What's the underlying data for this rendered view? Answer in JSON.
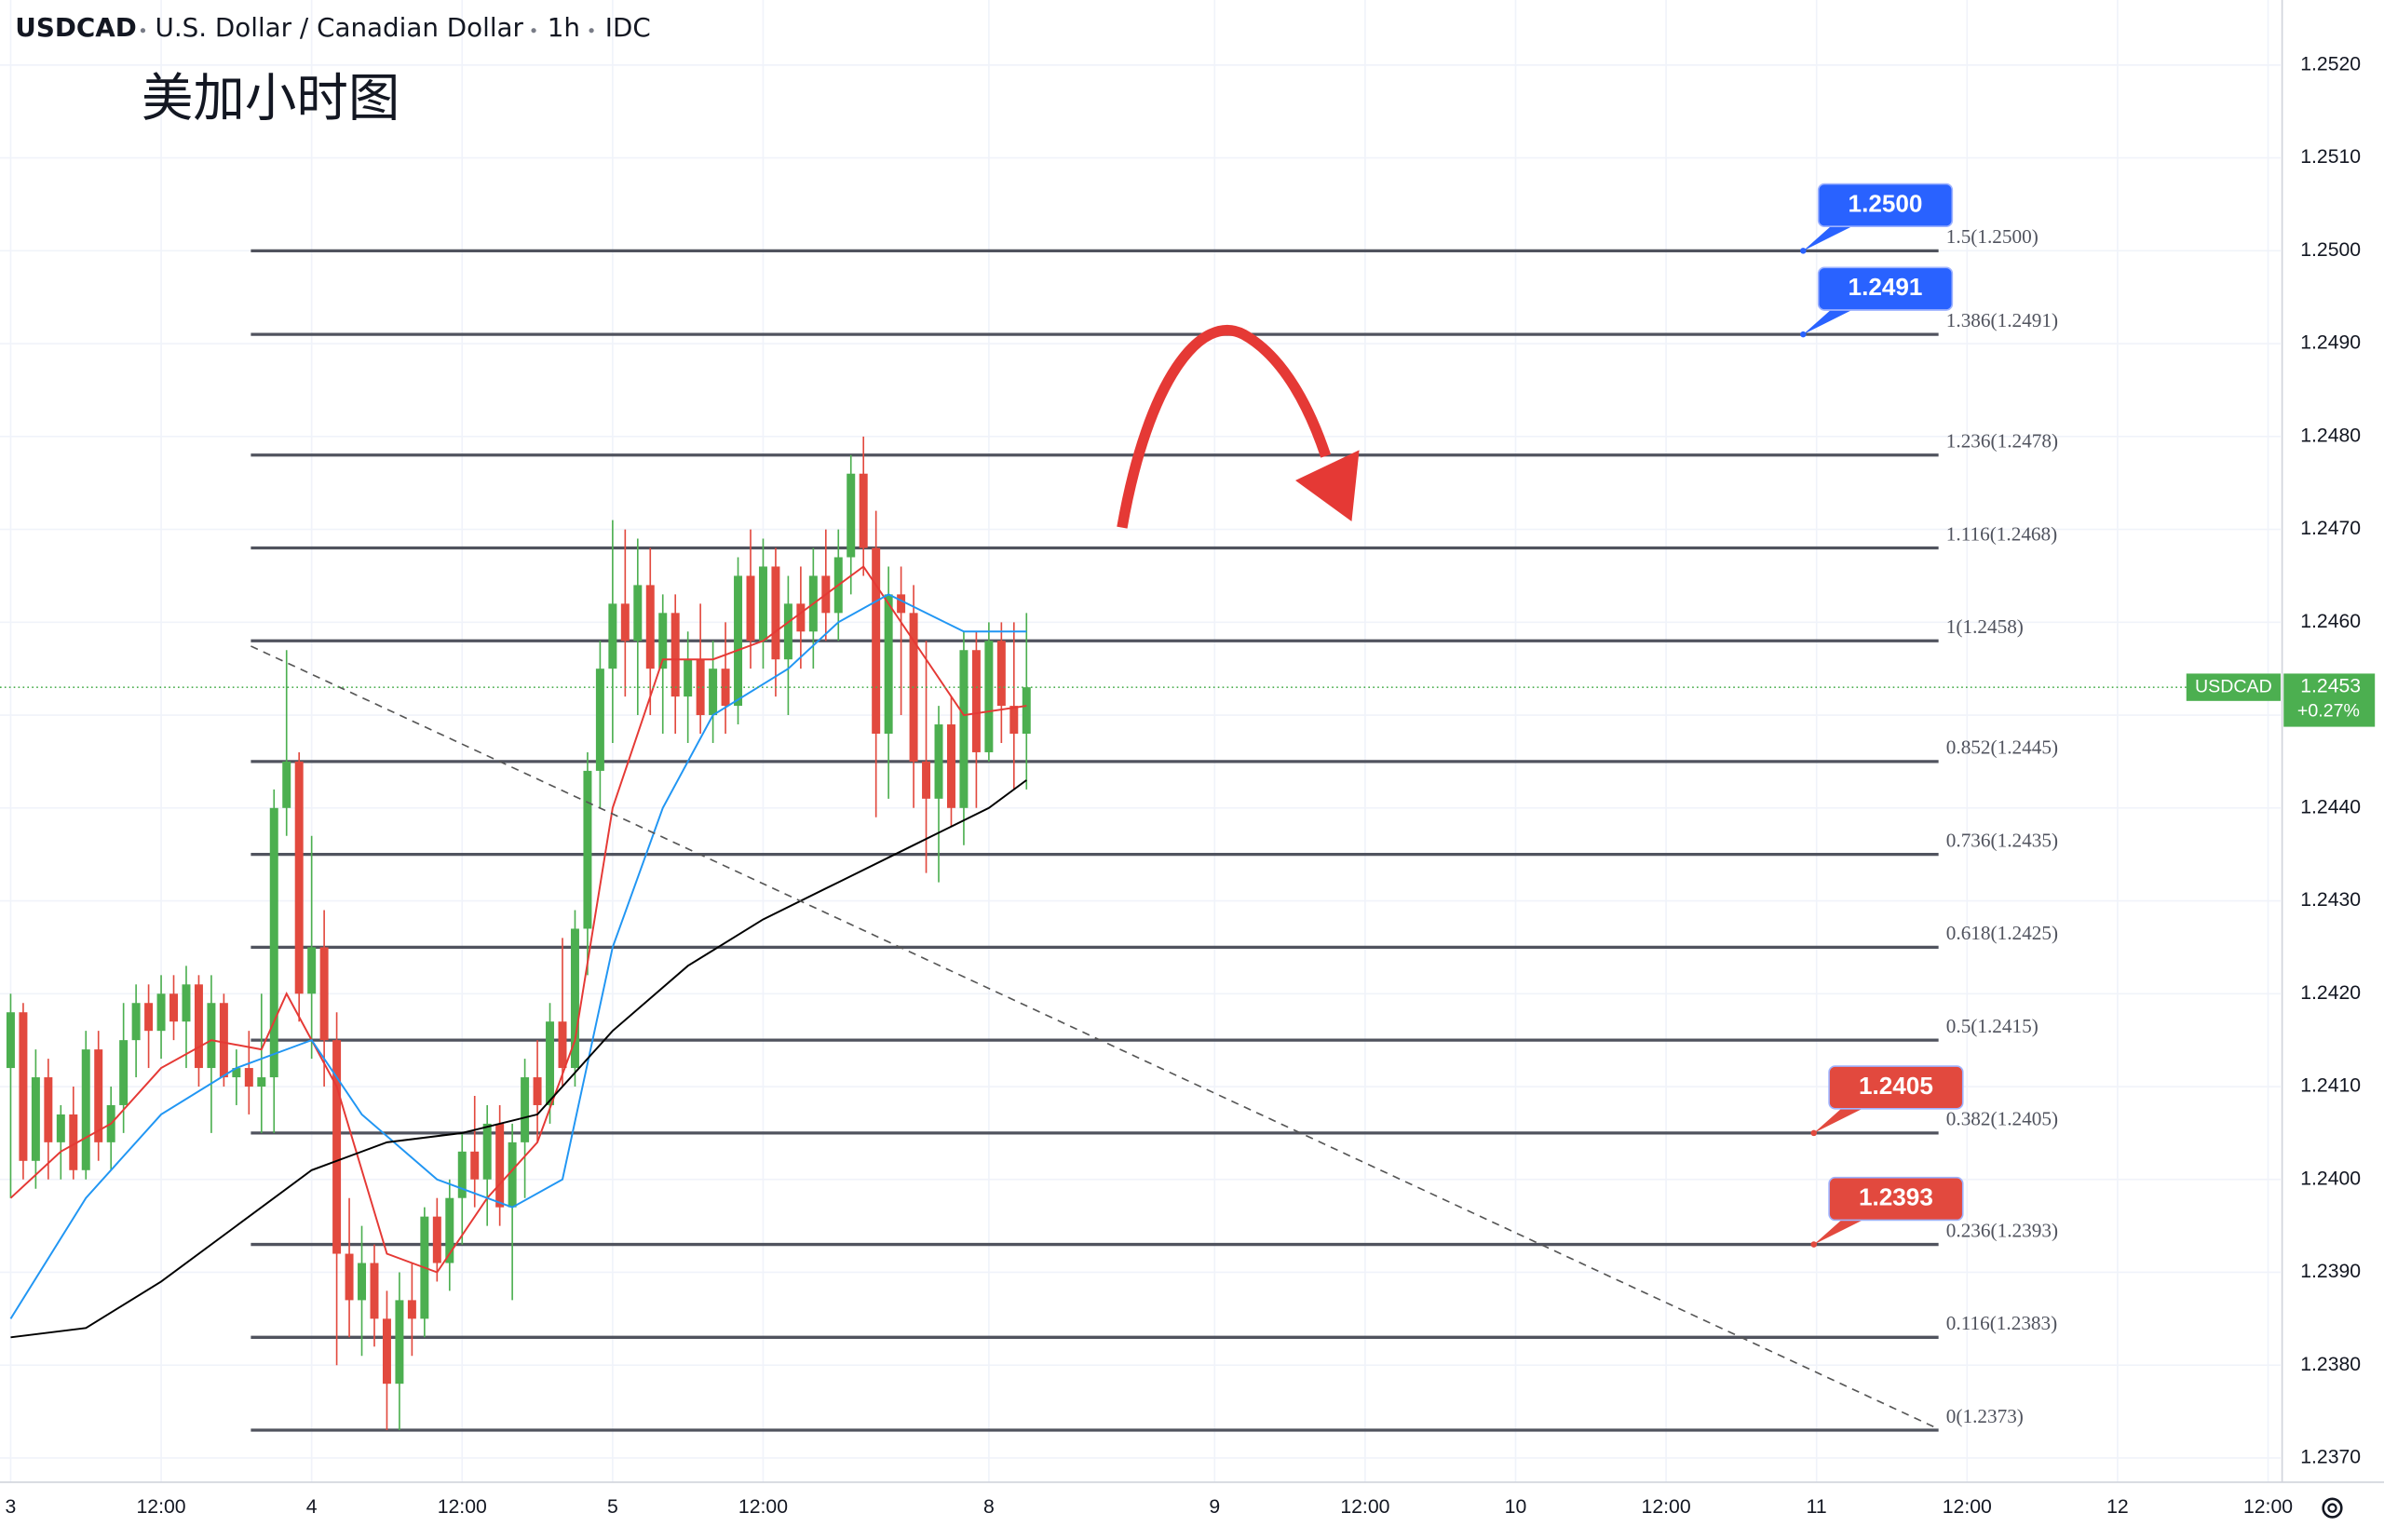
{
  "chart_data": {
    "type": "candlestick",
    "header": {
      "symbol": "USDCAD",
      "name": "U.S. Dollar / Canadian Dollar",
      "interval": "1h",
      "source": "IDC"
    },
    "title": "美加小时图",
    "xlim": [
      -0.85,
      181
    ],
    "ylim": [
      1.23674,
      1.2527
    ],
    "xticks": [
      {
        "value": 0,
        "label": "3"
      },
      {
        "value": 12,
        "label": "12:00"
      },
      {
        "value": 24,
        "label": "4"
      },
      {
        "value": 36,
        "label": "12:00"
      },
      {
        "value": 48,
        "label": "5"
      },
      {
        "value": 60,
        "label": "12:00"
      },
      {
        "value": 78,
        "label": "8"
      },
      {
        "value": 96,
        "label": "9"
      },
      {
        "value": 108,
        "label": "12:00"
      },
      {
        "value": 120,
        "label": "10"
      },
      {
        "value": 132,
        "label": "12:00"
      },
      {
        "value": 144,
        "label": "11"
      },
      {
        "value": 156,
        "label": "12:00"
      },
      {
        "value": 168,
        "label": "12"
      },
      {
        "value": 180,
        "label": "12:00"
      }
    ],
    "yticks": [
      {
        "value": 1.237,
        "label": "1.2370"
      },
      {
        "value": 1.238,
        "label": "1.2380"
      },
      {
        "value": 1.239,
        "label": "1.2390"
      },
      {
        "value": 1.24,
        "label": "1.2400"
      },
      {
        "value": 1.241,
        "label": "1.2410"
      },
      {
        "value": 1.242,
        "label": "1.2420"
      },
      {
        "value": 1.243,
        "label": "1.2430"
      },
      {
        "value": 1.244,
        "label": "1.2440"
      },
      {
        "value": 1.245,
        "label": "1.2450"
      },
      {
        "value": 1.246,
        "label": "1.2460"
      },
      {
        "value": 1.247,
        "label": "1.2470"
      },
      {
        "value": 1.248,
        "label": "1.2480"
      },
      {
        "value": 1.249,
        "label": "1.2490"
      },
      {
        "value": 1.25,
        "label": "1.2500"
      },
      {
        "value": 1.251,
        "label": "1.2510"
      },
      {
        "value": 1.252,
        "label": "1.2520"
      }
    ],
    "grid": true,
    "up_color": "#4caf50",
    "down_color": "#e2493e",
    "candles": {
      "x": [
        0,
        1,
        2,
        3,
        4,
        5,
        6,
        7,
        8,
        9,
        10,
        11,
        12,
        13,
        14,
        15,
        16,
        17,
        18,
        19,
        20,
        21,
        22,
        23,
        24,
        25,
        26,
        27,
        28,
        29,
        30,
        31,
        32,
        33,
        34,
        35,
        36,
        37,
        38,
        39,
        40,
        41,
        42,
        43,
        44,
        45,
        46,
        47,
        48,
        49,
        50,
        51,
        52,
        53,
        54,
        55,
        56,
        57,
        58,
        59,
        60,
        61,
        62,
        63,
        64,
        65,
        66,
        67,
        68,
        69,
        70,
        71,
        72,
        73,
        74,
        75,
        76,
        77,
        78,
        79,
        80,
        81
      ],
      "open": [
        1.2412,
        1.2418,
        1.2402,
        1.2411,
        1.2404,
        1.2407,
        1.2401,
        1.2414,
        1.2404,
        1.2408,
        1.2415,
        1.2419,
        1.2416,
        1.242,
        1.2417,
        1.2421,
        1.2412,
        1.2419,
        1.2411,
        1.2412,
        1.241,
        1.2411,
        1.244,
        1.2445,
        1.242,
        1.2425,
        1.2415,
        1.2392,
        1.2387,
        1.2391,
        1.2385,
        1.2378,
        1.2387,
        1.2385,
        1.2396,
        1.2391,
        1.2398,
        1.2403,
        1.24,
        1.2406,
        1.2397,
        1.2404,
        1.2411,
        1.2408,
        1.2417,
        1.2412,
        1.2427,
        1.2444,
        1.2455,
        1.2462,
        1.2458,
        1.2464,
        1.2455,
        1.2461,
        1.2452,
        1.2456,
        1.245,
        1.2455,
        1.2451,
        1.2465,
        1.2458,
        1.2466,
        1.2456,
        1.2462,
        1.2459,
        1.2465,
        1.2461,
        1.2467,
        1.2476,
        1.2468,
        1.2448,
        1.2463,
        1.2461,
        1.2445,
        1.2441,
        1.2449,
        1.244,
        1.2457,
        1.2446,
        1.2458,
        1.2451,
        1.2448
      ],
      "high": [
        1.242,
        1.2419,
        1.2414,
        1.2413,
        1.2408,
        1.241,
        1.2416,
        1.2416,
        1.241,
        1.2419,
        1.2421,
        1.2421,
        1.2422,
        1.2422,
        1.2423,
        1.2422,
        1.2422,
        1.242,
        1.2414,
        1.2416,
        1.242,
        1.2442,
        1.2457,
        1.2446,
        1.2437,
        1.2429,
        1.2418,
        1.2398,
        1.2395,
        1.2393,
        1.2388,
        1.239,
        1.2391,
        1.2397,
        1.2398,
        1.24,
        1.2405,
        1.2409,
        1.2408,
        1.2408,
        1.2406,
        1.2413,
        1.2415,
        1.2419,
        1.2426,
        1.2429,
        1.2446,
        1.2458,
        1.2471,
        1.247,
        1.2469,
        1.2468,
        1.2463,
        1.2463,
        1.2459,
        1.2462,
        1.2458,
        1.246,
        1.2467,
        1.247,
        1.2469,
        1.2468,
        1.2465,
        1.2466,
        1.2468,
        1.247,
        1.247,
        1.2478,
        1.248,
        1.2472,
        1.2466,
        1.2466,
        1.2464,
        1.2458,
        1.2451,
        1.2452,
        1.2459,
        1.2459,
        1.246,
        1.246,
        1.246,
        1.2461
      ],
      "low": [
        1.2398,
        1.24,
        1.2399,
        1.24,
        1.24,
        1.24,
        1.24,
        1.2402,
        1.2401,
        1.2405,
        1.2411,
        1.2412,
        1.2413,
        1.2415,
        1.2412,
        1.241,
        1.2405,
        1.241,
        1.2408,
        1.2407,
        1.2405,
        1.2405,
        1.2437,
        1.2417,
        1.2413,
        1.241,
        1.238,
        1.2383,
        1.2381,
        1.2382,
        1.2373,
        1.2373,
        1.2381,
        1.2383,
        1.2389,
        1.2388,
        1.2393,
        1.2397,
        1.2395,
        1.2395,
        1.2387,
        1.2398,
        1.2404,
        1.2406,
        1.241,
        1.241,
        1.2422,
        1.244,
        1.2447,
        1.2452,
        1.245,
        1.245,
        1.2448,
        1.2448,
        1.2447,
        1.2448,
        1.2447,
        1.2448,
        1.2449,
        1.2455,
        1.2455,
        1.2452,
        1.245,
        1.2455,
        1.2455,
        1.2458,
        1.2458,
        1.2463,
        1.2465,
        1.2439,
        1.2441,
        1.245,
        1.244,
        1.2433,
        1.2432,
        1.2438,
        1.2436,
        1.244,
        1.2445,
        1.2447,
        1.2442,
        1.2442
      ],
      "close": [
        1.2418,
        1.2402,
        1.2411,
        1.2404,
        1.2407,
        1.2401,
        1.2414,
        1.2404,
        1.2408,
        1.2415,
        1.2419,
        1.2416,
        1.242,
        1.2417,
        1.2421,
        1.2412,
        1.2419,
        1.2411,
        1.2412,
        1.241,
        1.2411,
        1.244,
        1.2445,
        1.242,
        1.2425,
        1.2415,
        1.2392,
        1.2387,
        1.2391,
        1.2385,
        1.2378,
        1.2387,
        1.2385,
        1.2396,
        1.2391,
        1.2398,
        1.2403,
        1.24,
        1.2406,
        1.2397,
        1.2404,
        1.2411,
        1.2408,
        1.2417,
        1.2412,
        1.2427,
        1.2444,
        1.2455,
        1.2462,
        1.2458,
        1.2464,
        1.2455,
        1.2461,
        1.2452,
        1.2456,
        1.245,
        1.2455,
        1.2451,
        1.2465,
        1.2458,
        1.2466,
        1.2456,
        1.2462,
        1.2459,
        1.2465,
        1.2461,
        1.2467,
        1.2476,
        1.2468,
        1.2448,
        1.2463,
        1.2461,
        1.2445,
        1.2441,
        1.2449,
        1.244,
        1.2457,
        1.2446,
        1.2458,
        1.2451,
        1.2448,
        1.2453
      ]
    },
    "lines": [
      {
        "color": "#e53935",
        "x": [
          0,
          4,
          8,
          12,
          16,
          20,
          22,
          26,
          30,
          34,
          38,
          42,
          45,
          48,
          52,
          56,
          60,
          64,
          68,
          72,
          76,
          81
        ],
        "values": [
          1.2398,
          1.2403,
          1.2406,
          1.2412,
          1.2415,
          1.2414,
          1.242,
          1.241,
          1.2392,
          1.239,
          1.2398,
          1.2404,
          1.2415,
          1.244,
          1.2456,
          1.2456,
          1.2458,
          1.2462,
          1.2466,
          1.2458,
          1.245,
          1.2451
        ]
      },
      {
        "color": "#2196f3",
        "x": [
          0,
          6,
          12,
          18,
          24,
          28,
          34,
          40,
          44,
          48,
          52,
          56,
          62,
          66,
          70,
          76,
          81
        ],
        "values": [
          1.2385,
          1.2398,
          1.2407,
          1.2412,
          1.2415,
          1.2407,
          1.24,
          1.2397,
          1.24,
          1.2425,
          1.244,
          1.245,
          1.2455,
          1.246,
          1.2463,
          1.2459,
          1.2459
        ]
      },
      {
        "color": "#000000",
        "x": [
          0,
          6,
          12,
          18,
          24,
          30,
          36,
          42,
          48,
          54,
          60,
          66,
          72,
          78,
          81
        ],
        "values": [
          1.2383,
          1.2384,
          1.2389,
          1.2395,
          1.2401,
          1.2404,
          1.2405,
          1.2407,
          1.2416,
          1.2423,
          1.2428,
          1.2432,
          1.2436,
          1.244,
          1.2443
        ]
      }
    ],
    "fib_levels": [
      {
        "value": 1.25,
        "label": "1.5(1.2500)"
      },
      {
        "value": 1.2491,
        "label": "1.386(1.2491)"
      },
      {
        "value": 1.2478,
        "label": "1.236(1.2478)"
      },
      {
        "value": 1.2468,
        "label": "1.116(1.2468)"
      },
      {
        "value": 1.2458,
        "label": "1(1.2458)"
      },
      {
        "value": 1.2445,
        "label": "0.852(1.2445)"
      },
      {
        "value": 1.2435,
        "label": "0.736(1.2435)"
      },
      {
        "value": 1.2425,
        "label": "0.618(1.2425)"
      },
      {
        "value": 1.2415,
        "label": "0.5(1.2415)"
      },
      {
        "value": 1.2405,
        "label": "0.382(1.2405)"
      },
      {
        "value": 1.2393,
        "label": "0.236(1.2393)"
      },
      {
        "value": 1.2383,
        "label": "0.116(1.2383)"
      },
      {
        "value": 1.2373,
        "label": "0(1.2373)"
      }
    ],
    "callouts": [
      {
        "value": 1.25,
        "label": "1.2500",
        "color": "#2962ff"
      },
      {
        "value": 1.2491,
        "label": "1.2491",
        "color": "#2962ff"
      },
      {
        "value": 1.2405,
        "label": "1.2405",
        "color": "#e2493e"
      },
      {
        "value": 1.2393,
        "label": "1.2393",
        "color": "#e2493e"
      }
    ],
    "last_price": {
      "value": 1.2453,
      "label": "1.2453",
      "symbol": "USDCAD",
      "change": "+0.27%",
      "color": "#4caf50"
    }
  }
}
